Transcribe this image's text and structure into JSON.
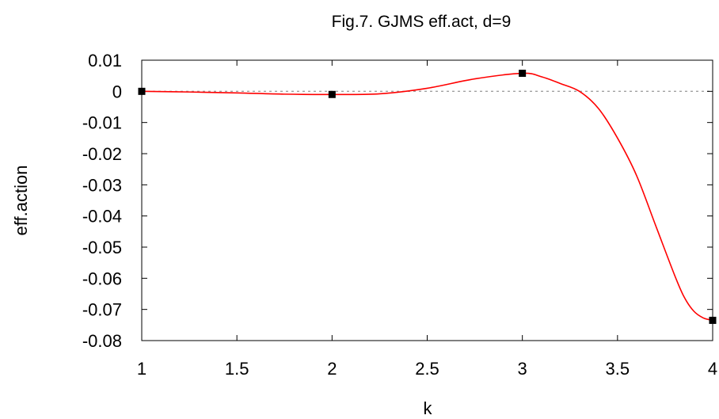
{
  "chart_data": {
    "type": "line",
    "title": "Fig.7. GJMS eff.act, d=9",
    "xlabel": "k",
    "ylabel": "eff.action",
    "xlim": [
      1,
      4
    ],
    "ylim": [
      -0.08,
      0.01
    ],
    "xticks": [
      "1",
      "1.5",
      "2",
      "2.5",
      "3",
      "3.5",
      "4"
    ],
    "yticks": [
      "0.01",
      "0",
      "-0.01",
      "-0.02",
      "-0.03",
      "-0.04",
      "-0.05",
      "-0.06",
      "-0.07",
      "-0.08"
    ],
    "grid": false,
    "zero_line": true,
    "series": [
      {
        "kind": "points",
        "color": "#000000",
        "x": [
          1,
          2,
          3,
          4
        ],
        "y": [
          0.0,
          -0.001,
          0.0058,
          -0.0735
        ]
      },
      {
        "kind": "curve",
        "color": "#ff0000",
        "x": [
          1.0,
          1.25,
          1.5,
          1.75,
          2.0,
          2.25,
          2.5,
          2.75,
          3.0,
          3.1,
          3.2,
          3.3,
          3.4,
          3.5,
          3.6,
          3.7,
          3.8,
          3.85,
          3.9,
          3.95,
          4.0
        ],
        "y": [
          0.0,
          -0.0002,
          -0.0005,
          -0.0009,
          -0.001,
          -0.0008,
          0.001,
          0.004,
          0.0058,
          0.0047,
          0.0025,
          0.0,
          -0.0055,
          -0.015,
          -0.027,
          -0.043,
          -0.059,
          -0.066,
          -0.0705,
          -0.0727,
          -0.0735
        ]
      }
    ]
  }
}
